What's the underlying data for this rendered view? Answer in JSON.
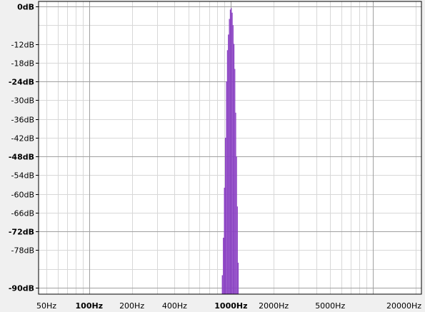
{
  "chart_data": {
    "type": "area",
    "title": "",
    "xlabel": "",
    "ylabel": "",
    "x_scale": "log",
    "xlim": [
      44,
      22000
    ],
    "ylim": [
      -93,
      0
    ],
    "grid": true,
    "colors": {
      "series": "#8c44c4",
      "background": "#ffffff",
      "panel": "#f0f0f0",
      "grid_minor": "#d8d8d8",
      "grid_major": "#a0a0a0"
    },
    "y_ticks": [
      {
        "value": 0,
        "label": "0dB",
        "bold": true
      },
      {
        "value": -12,
        "label": "-12dB",
        "bold": false
      },
      {
        "value": -18,
        "label": "-18dB",
        "bold": false
      },
      {
        "value": -24,
        "label": "-24dB",
        "bold": true
      },
      {
        "value": -30,
        "label": "-30dB",
        "bold": false
      },
      {
        "value": -36,
        "label": "-36dB",
        "bold": false
      },
      {
        "value": -42,
        "label": "-42dB",
        "bold": false
      },
      {
        "value": -48,
        "label": "-48dB",
        "bold": true
      },
      {
        "value": -54,
        "label": "-54dB",
        "bold": false
      },
      {
        "value": -60,
        "label": "-60dB",
        "bold": false
      },
      {
        "value": -66,
        "label": "-66dB",
        "bold": false
      },
      {
        "value": -72,
        "label": "-72dB",
        "bold": true
      },
      {
        "value": -78,
        "label": "-78dB",
        "bold": false
      },
      {
        "value": -90,
        "label": "-90dB",
        "bold": true
      }
    ],
    "x_ticks": [
      {
        "value": 50,
        "label": "50Hz",
        "bold": false
      },
      {
        "value": 100,
        "label": "100Hz",
        "bold": true
      },
      {
        "value": 200,
        "label": "200Hz",
        "bold": false
      },
      {
        "value": 400,
        "label": "400Hz",
        "bold": false
      },
      {
        "value": 1000,
        "label": "1000Hz",
        "bold": true
      },
      {
        "value": 2000,
        "label": "2000Hz",
        "bold": false
      },
      {
        "value": 5000,
        "label": "5000Hz",
        "bold": false
      },
      {
        "value": 20000,
        "label": "20000Hz",
        "bold": false
      }
    ],
    "x_minor_grid": [
      50,
      60,
      70,
      80,
      90,
      200,
      300,
      400,
      500,
      600,
      700,
      800,
      900,
      2000,
      3000,
      4000,
      5000,
      6000,
      7000,
      8000,
      9000,
      20000
    ],
    "x_major_grid": [
      100,
      1000,
      10000
    ],
    "y_minor_grid": [
      -6,
      -12,
      -18,
      -30,
      -36,
      -42,
      -54,
      -60,
      -66,
      -78,
      -84
    ],
    "y_major_grid": [
      0,
      -24,
      -48,
      -72,
      -90
    ],
    "series": [
      {
        "bars": [
          {
            "f0": 862,
            "f1": 877,
            "db": -86
          },
          {
            "f0": 877,
            "f1": 892,
            "db": -74
          },
          {
            "f0": 892,
            "f1": 907,
            "db": -58
          },
          {
            "f0": 907,
            "f1": 922,
            "db": -42
          },
          {
            "f0": 922,
            "f1": 937,
            "db": -24
          },
          {
            "f0": 937,
            "f1": 952,
            "db": -14
          },
          {
            "f0": 952,
            "f1": 967,
            "db": -9
          },
          {
            "f0": 967,
            "f1": 982,
            "db": -4
          },
          {
            "f0": 982,
            "f1": 997,
            "db": -1
          },
          {
            "f0": 997,
            "f1": 1012,
            "db": -0.5
          },
          {
            "f0": 1012,
            "f1": 1027,
            "db": -2
          },
          {
            "f0": 1027,
            "f1": 1042,
            "db": -6
          },
          {
            "f0": 1042,
            "f1": 1057,
            "db": -12
          },
          {
            "f0": 1057,
            "f1": 1072,
            "db": -20
          },
          {
            "f0": 1072,
            "f1": 1087,
            "db": -34
          },
          {
            "f0": 1087,
            "f1": 1102,
            "db": -48
          },
          {
            "f0": 1102,
            "f1": 1117,
            "db": -64
          },
          {
            "f0": 1117,
            "f1": 1132,
            "db": -82
          }
        ]
      }
    ]
  }
}
